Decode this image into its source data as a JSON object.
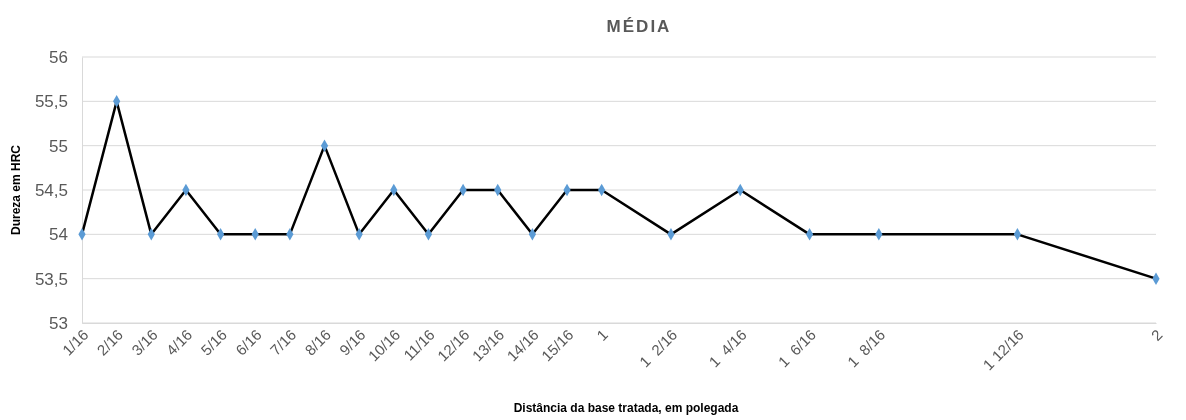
{
  "chart_data": {
    "type": "line",
    "title": "MÉDIA",
    "xlabel": "Distância da base tratada, em polegada",
    "ylabel": "Dureza em HRC",
    "x": [
      0.0625,
      0.125,
      0.1875,
      0.25,
      0.3125,
      0.375,
      0.4375,
      0.5,
      0.5625,
      0.625,
      0.6875,
      0.75,
      0.8125,
      0.875,
      0.9375,
      1,
      1.125,
      1.25,
      1.375,
      1.5,
      1.75,
      2
    ],
    "series": [
      {
        "color": "#000000",
        "colors": [
          "#5b9bd5",
          "#5b9bd5",
          "#5b9bd5",
          "#5b9bd5",
          "#5b9bd5",
          "#5b9bd5",
          "#5b9bd5",
          "#5b9bd5",
          "#5b9bd5",
          "#5b9bd5",
          "#5b9bd5",
          "#5b9bd5",
          "#5b9bd5",
          "#5b9bd5",
          "#5b9bd5",
          "#5b9bd5",
          "#5b9bd5",
          "#5b9bd5",
          "#5b9bd5",
          "#5b9bd5",
          "#5b9bd5",
          "#5b9bd5"
        ],
        "values": [
          54,
          55.5,
          54,
          54.5,
          54,
          54,
          54,
          55,
          54,
          54.5,
          54,
          54.5,
          54.5,
          54,
          54.5,
          54.5,
          54,
          54.5,
          54,
          54,
          54,
          53.5
        ]
      }
    ],
    "xlim": [
      0.0625,
      2
    ],
    "xticks": [
      {
        "value": 0.0625,
        "label": "1/16"
      },
      {
        "value": 0.125,
        "label": "2/16"
      },
      {
        "value": 0.1875,
        "label": "3/16"
      },
      {
        "value": 0.25,
        "label": "4/16"
      },
      {
        "value": 0.3125,
        "label": "5/16"
      },
      {
        "value": 0.375,
        "label": "6/16"
      },
      {
        "value": 0.4375,
        "label": "7/16"
      },
      {
        "value": 0.5,
        "label": "8/16"
      },
      {
        "value": 0.5625,
        "label": "9/16"
      },
      {
        "value": 0.625,
        "label": "10/16"
      },
      {
        "value": 0.6875,
        "label": "11/16"
      },
      {
        "value": 0.75,
        "label": "12/16"
      },
      {
        "value": 0.8125,
        "label": "13/16"
      },
      {
        "value": 0.875,
        "label": "14/16"
      },
      {
        "value": 0.9375,
        "label": "15/16"
      },
      1,
      {
        "value": 1.125,
        "label": "1  2/16"
      },
      {
        "value": 1.25,
        "label": "1  4/16"
      },
      {
        "value": 1.375,
        "label": "1  6/16"
      },
      {
        "value": 1.5,
        "label": "1  8/16"
      },
      {
        "value": 1.75,
        "label": "1 12/16"
      },
      2
    ],
    "ylim": [
      53,
      56
    ],
    "yticks": [
      53,
      {
        "value": 53.5,
        "label": "53,5"
      },
      54,
      {
        "value": 54.5,
        "label": "54,5"
      },
      55,
      {
        "value": 55.5,
        "label": "55,5"
      },
      56
    ],
    "grid": "y",
    "marker": "diamond"
  }
}
